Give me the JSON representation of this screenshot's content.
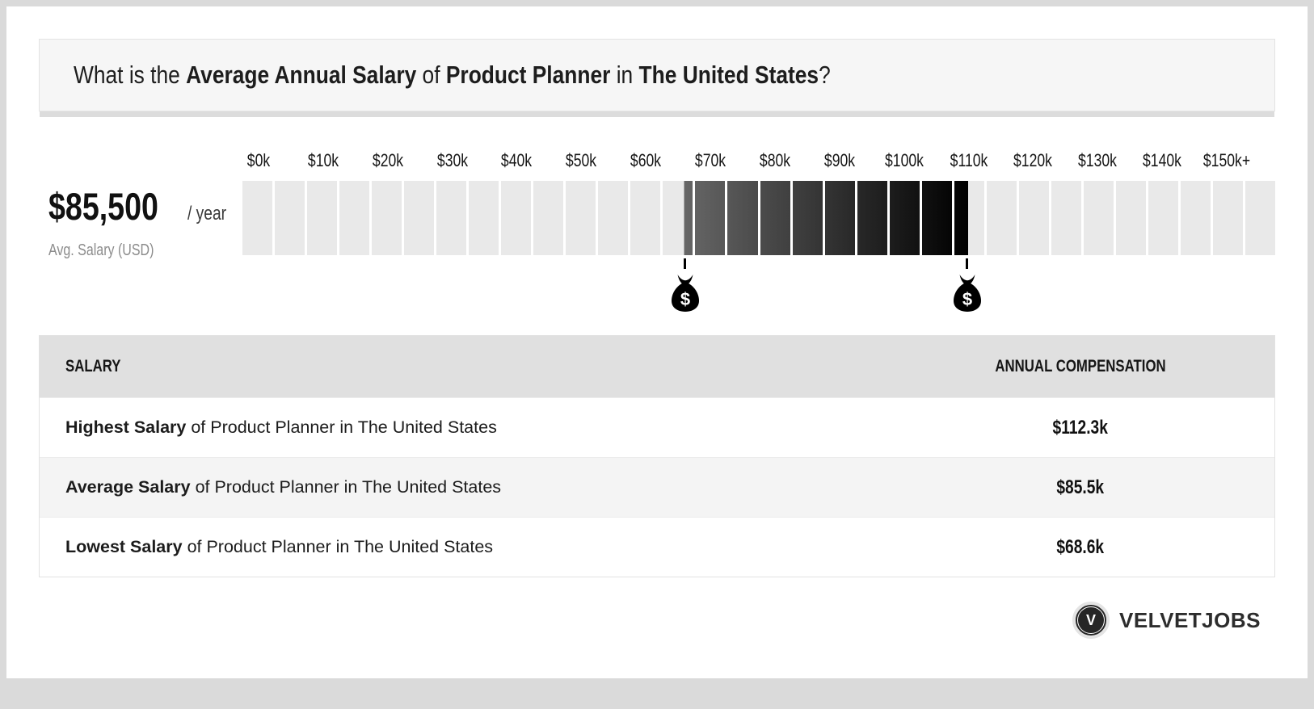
{
  "page": {
    "title_parts": [
      {
        "text": "What is the ",
        "bold": false
      },
      {
        "text": "Average Annual Salary",
        "bold": true
      },
      {
        "text": " of ",
        "bold": false
      },
      {
        "text": "Product Planner",
        "bold": true
      },
      {
        "text": " in ",
        "bold": false
      },
      {
        "text": "The United States",
        "bold": true
      },
      {
        "text": "?",
        "bold": false
      }
    ]
  },
  "summary": {
    "amount": "$85,500",
    "period": "/ year",
    "caption": "Avg. Salary (USD)"
  },
  "chart_data": {
    "type": "range-scale",
    "title": "Salary range of Product Planner in The United States",
    "axis_labels": [
      "$0k",
      "$10k",
      "$20k",
      "$30k",
      "$40k",
      "$50k",
      "$60k",
      "$70k",
      "$80k",
      "$90k",
      "$100k",
      "$110k",
      "$120k",
      "$130k",
      "$140k",
      "$150k+"
    ],
    "axis_min_k": 0,
    "axis_max_k": 160,
    "segment_step_k": 5,
    "lowest_k": 68.6,
    "highest_k": 112.3,
    "average_k": 85.5,
    "marker_symbol": "$",
    "track_color": "#e9e9e9",
    "range_gradient": [
      "#666666",
      "#000000"
    ]
  },
  "table": {
    "headers": [
      "SALARY",
      "ANNUAL COMPENSATION"
    ],
    "rows": [
      {
        "label_bold": "Highest Salary",
        "label_rest": " of Product Planner in The United States",
        "value": "$112.3k"
      },
      {
        "label_bold": "Average Salary",
        "label_rest": " of Product Planner in The United States",
        "value": "$85.5k"
      },
      {
        "label_bold": "Lowest Salary",
        "label_rest": " of Product Planner in The United States",
        "value": "$68.6k"
      }
    ]
  },
  "footer": {
    "brand": "VELVETJOBS",
    "logo_letter": "V"
  }
}
